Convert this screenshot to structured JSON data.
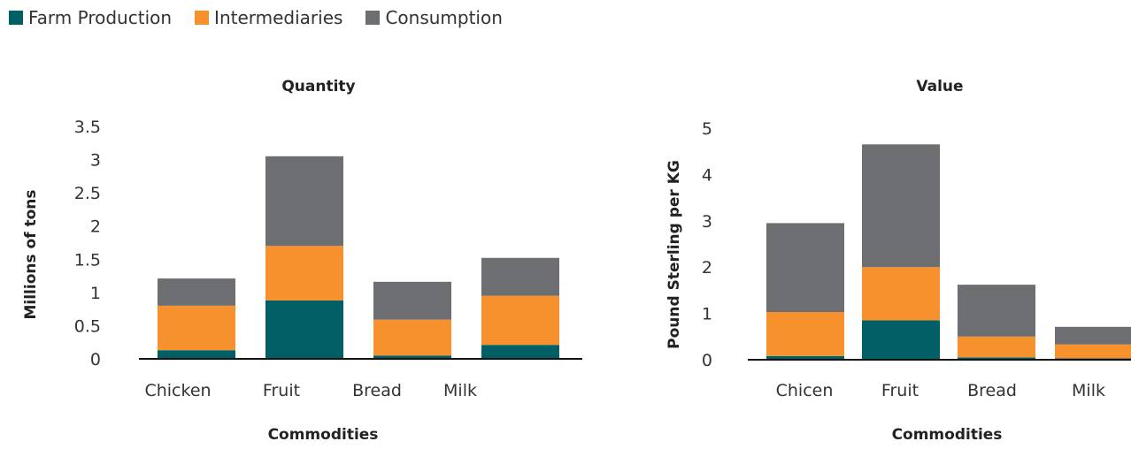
{
  "legend": [
    {
      "name": "Farm Production",
      "color": "#006065"
    },
    {
      "name": "Intermediaries",
      "color": "#F7912E"
    },
    {
      "name": "Consumption",
      "color": "#6D6E71"
    }
  ],
  "chart_data": [
    {
      "type": "bar",
      "stacked": true,
      "title": "Quantity",
      "xlabel": "Commodities",
      "ylabel": "Millions of tons",
      "categories": [
        "Chicken",
        "Fruit",
        "Bread",
        "Milk"
      ],
      "ylim": [
        0,
        3.5
      ],
      "yticks": [
        "0",
        "0.5",
        "1",
        "1.5",
        "2",
        "2.5",
        "3",
        "3.5"
      ],
      "series": [
        {
          "name": "Farm Production",
          "color": "#006065",
          "values": [
            0.13,
            0.88,
            0.05,
            0.21
          ]
        },
        {
          "name": "Intermediaries",
          "color": "#F7912E",
          "values": [
            0.67,
            0.82,
            0.54,
            0.74
          ]
        },
        {
          "name": "Consumption",
          "color": "#6D6E71",
          "values": [
            0.41,
            1.35,
            0.57,
            0.57
          ]
        }
      ]
    },
    {
      "type": "bar",
      "stacked": true,
      "title": "Value",
      "xlabel": "Commodities",
      "ylabel": "Pound Sterling per KG",
      "categories": [
        "Chicen",
        "Fruit",
        "Bread",
        "Milk"
      ],
      "ylim": [
        0,
        5
      ],
      "yticks": [
        "0",
        "1",
        "2",
        "3",
        "4",
        "5"
      ],
      "series": [
        {
          "name": "Farm Production",
          "color": "#006065",
          "values": [
            0.08,
            0.85,
            0.05,
            0.03
          ]
        },
        {
          "name": "Intermediaries",
          "color": "#F7912E",
          "values": [
            0.95,
            1.15,
            0.45,
            0.3
          ]
        },
        {
          "name": "Consumption",
          "color": "#6D6E71",
          "values": [
            1.92,
            2.65,
            1.12,
            0.38
          ]
        }
      ]
    }
  ]
}
